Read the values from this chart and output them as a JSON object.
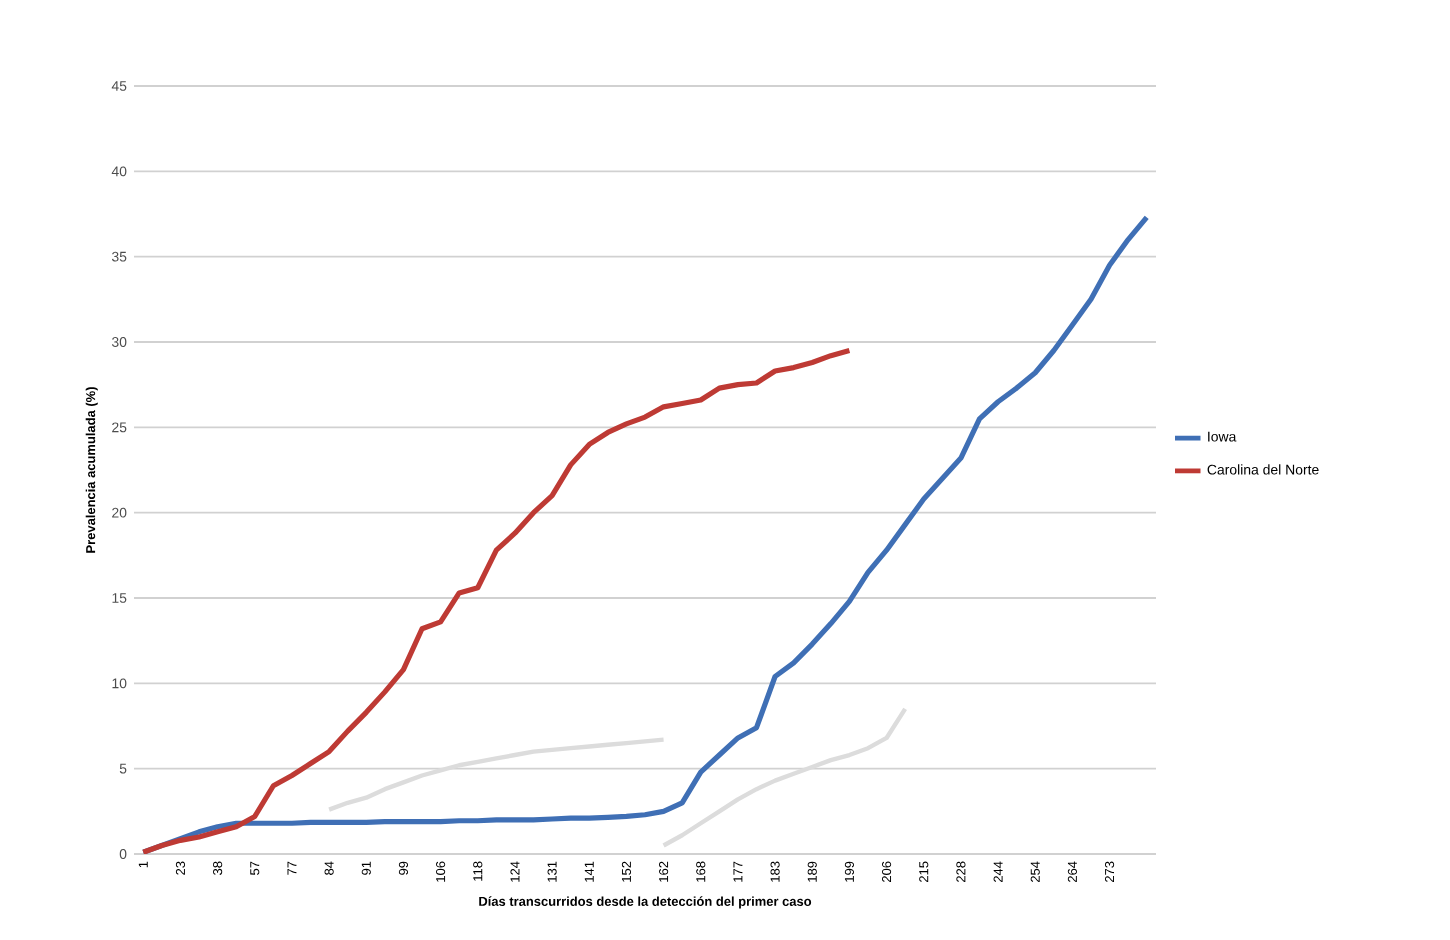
{
  "chart_data": {
    "type": "line",
    "xlabel": "Días transcurridos desde la detección del primer caso",
    "ylabel": "Prevalencia acumulada (%)",
    "categories": [
      "1",
      null,
      "23",
      null,
      "38",
      null,
      "57",
      null,
      "77",
      null,
      "84",
      null,
      "91",
      null,
      "99",
      null,
      "106",
      null,
      "118",
      null,
      "124",
      null,
      "131",
      null,
      "141",
      null,
      "152",
      null,
      "162",
      null,
      "168",
      null,
      "177",
      null,
      "183",
      null,
      "189",
      null,
      "199",
      null,
      "206",
      null,
      "215",
      null,
      "228",
      null,
      "244",
      null,
      "254",
      null,
      "264",
      null,
      "273",
      null,
      null
    ],
    "ylim": [
      0,
      45
    ],
    "yticks": [
      0,
      5,
      10,
      15,
      20,
      25,
      30,
      35,
      40,
      45
    ],
    "grid": "y",
    "legend": "right",
    "series": [
      {
        "color": "#dcdcdc",
        "values": [
          null,
          null,
          null,
          null,
          null,
          null,
          null,
          null,
          null,
          null,
          2.6,
          3.0,
          3.3,
          3.8,
          4.2,
          4.6,
          4.9,
          5.2,
          5.4,
          5.6,
          5.8,
          6.0,
          6.1,
          6.2,
          6.3,
          6.4,
          6.5,
          6.6,
          6.7,
          null,
          null,
          null,
          null,
          null,
          null,
          null,
          null,
          null,
          null,
          null,
          null,
          null,
          null,
          null,
          null,
          null,
          null,
          null,
          null,
          null,
          null,
          null,
          null,
          null,
          null
        ]
      },
      {
        "color": "#dcdcdc",
        "values": [
          null,
          null,
          null,
          null,
          null,
          null,
          null,
          null,
          null,
          null,
          null,
          null,
          null,
          null,
          null,
          null,
          null,
          null,
          null,
          null,
          null,
          null,
          null,
          null,
          null,
          null,
          null,
          null,
          0.5,
          1.1,
          1.8,
          2.5,
          3.2,
          3.8,
          4.3,
          4.7,
          5.1,
          5.5,
          5.8,
          6.2,
          6.8,
          8.5,
          null,
          null,
          null,
          null,
          null,
          null,
          null,
          null,
          null,
          null,
          null,
          null,
          null
        ]
      },
      {
        "name": "Iowa",
        "color": "#3f6fb5",
        "values": [
          0.1,
          0.5,
          0.9,
          1.3,
          1.6,
          1.8,
          1.8,
          1.8,
          1.8,
          1.85,
          1.85,
          1.85,
          1.85,
          1.9,
          1.9,
          1.9,
          1.9,
          1.95,
          1.95,
          2.0,
          2.0,
          2.0,
          2.05,
          2.1,
          2.1,
          2.15,
          2.2,
          2.3,
          2.5,
          3.0,
          4.8,
          5.8,
          6.8,
          7.4,
          10.4,
          11.2,
          12.3,
          13.5,
          14.8,
          16.5,
          17.8,
          19.3,
          20.8,
          22.0,
          23.2,
          25.5,
          26.5,
          27.3,
          28.2,
          29.5,
          31.0,
          32.5,
          34.5,
          36.0,
          37.3
        ]
      },
      {
        "name": "Carolina del Norte",
        "color": "#be3a34",
        "values": [
          0.1,
          0.5,
          0.8,
          1.0,
          1.3,
          1.6,
          2.2,
          4.0,
          4.6,
          5.3,
          6.0,
          7.2,
          8.3,
          9.5,
          10.8,
          13.2,
          13.6,
          15.3,
          15.6,
          17.8,
          18.8,
          20.0,
          21.0,
          22.8,
          24.0,
          24.7,
          25.2,
          25.6,
          26.2,
          26.4,
          26.6,
          27.3,
          27.5,
          27.6,
          28.3,
          28.5,
          28.8,
          29.2,
          29.5,
          null,
          null,
          null,
          null,
          null,
          null,
          null,
          null,
          null,
          null,
          null,
          null,
          null,
          null,
          null,
          null
        ]
      }
    ]
  }
}
